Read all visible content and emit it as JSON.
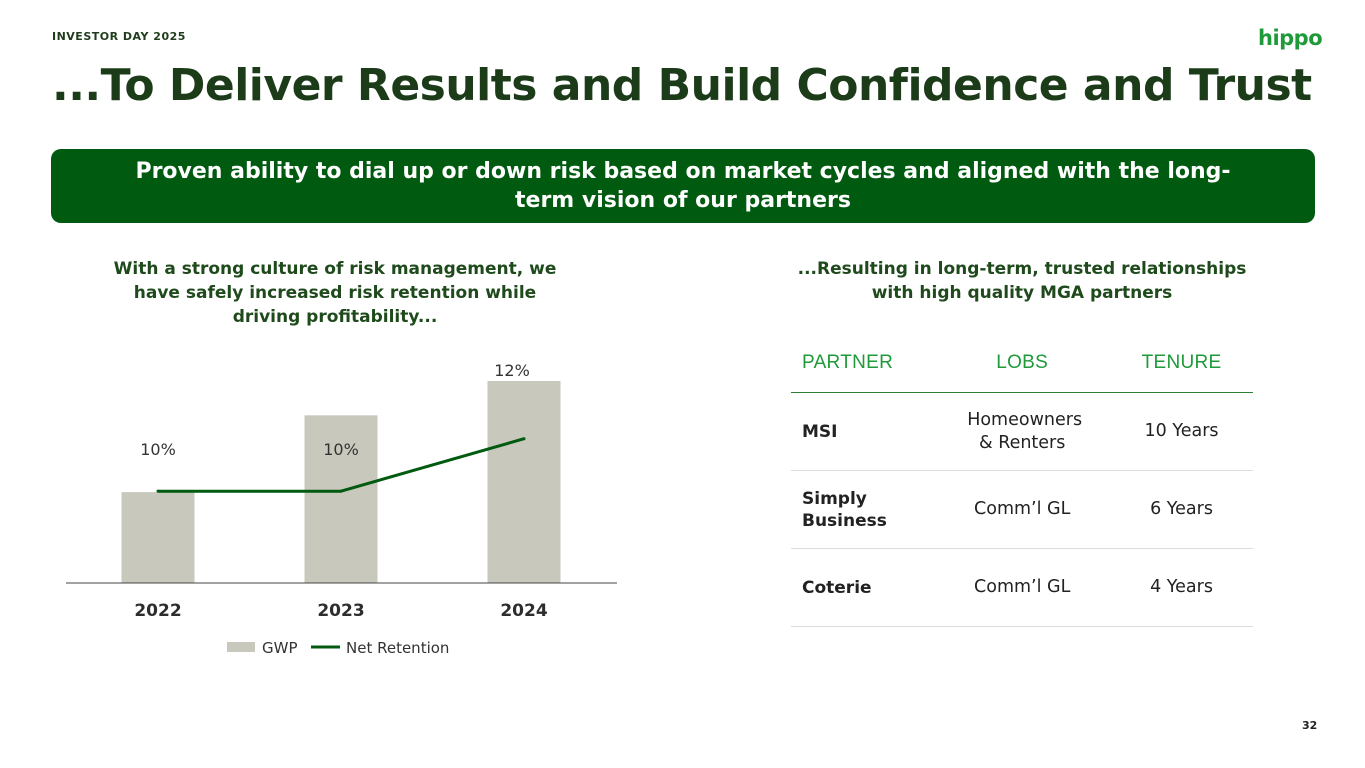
{
  "header": {
    "eyebrow": "INVESTOR DAY 2025",
    "logo_text": "hippo",
    "title": "...To Deliver Results and Build Confidence and Trust"
  },
  "banner": {
    "text": "Proven ability to dial up or down risk based on market cycles and aligned with the long-term vision of our partners"
  },
  "left_panel": {
    "subhead": "With a strong culture of risk management, we have safely increased risk retention while driving profitability..."
  },
  "right_panel": {
    "subhead": "...Resulting in long-term, trusted relationships with high quality MGA partners"
  },
  "chart_data": {
    "type": "bar",
    "categories": [
      "2022",
      "2023",
      "2024"
    ],
    "series": [
      {
        "name": "GWP",
        "type": "bar",
        "values": [
          45,
          83,
          100
        ],
        "color": "#c8c8bd"
      },
      {
        "name": "Net Retention",
        "type": "line",
        "values": [
          10,
          10,
          12
        ],
        "labels": [
          "10%",
          "10%",
          "12%"
        ],
        "color": "#005a0f"
      }
    ],
    "ylim": [
      0,
      100
    ],
    "retention_ylim": [
      6.5,
      14.2
    ],
    "legend": "bottom",
    "grid": false
  },
  "table": {
    "headers": [
      "PARTNER",
      "LOBS",
      "TENURE"
    ],
    "rows": [
      {
        "partner": "MSI",
        "lobs": "Homeowners & Renters",
        "tenure": "10 Years"
      },
      {
        "partner": "Simply Business",
        "lobs": "Comm’l GL",
        "tenure": "6 Years"
      },
      {
        "partner": "Coterie",
        "lobs": "Comm’l GL",
        "tenure": "4 Years"
      }
    ]
  },
  "footer": {
    "page_number": "32"
  },
  "colors": {
    "brand_green": "#1f9a3a",
    "dark_green": "#005a0f",
    "title_green": "#1c3b19",
    "bar_gray": "#c8c8bd"
  }
}
